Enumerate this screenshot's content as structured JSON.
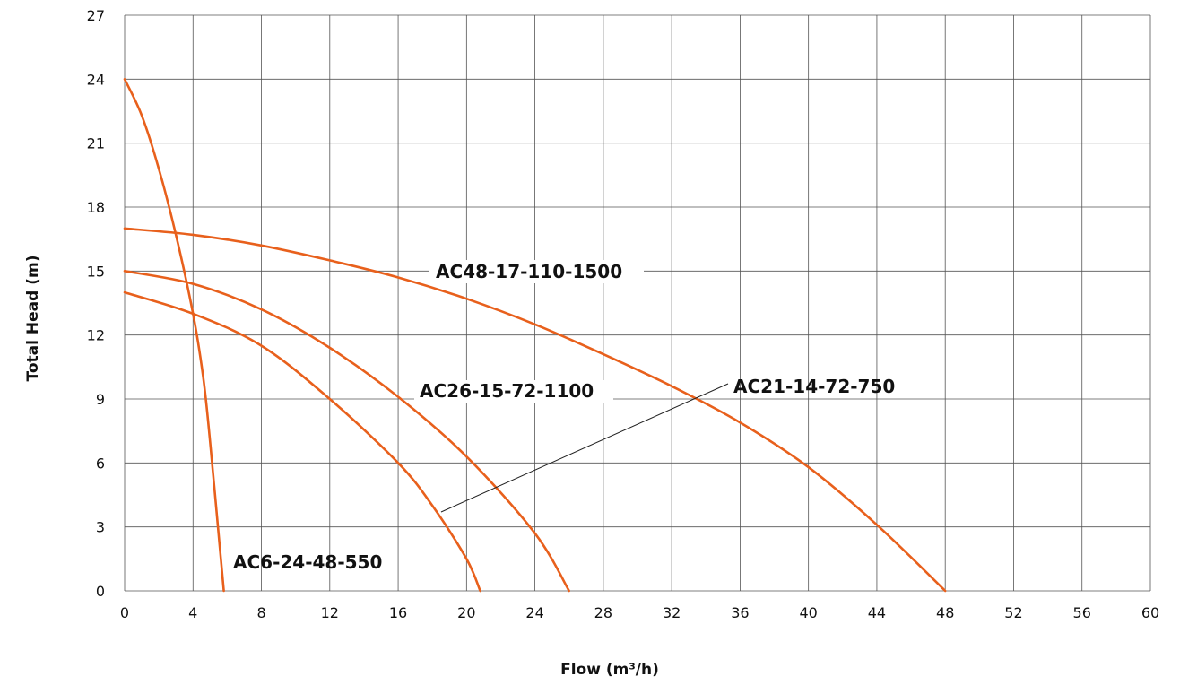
{
  "chart_data": {
    "type": "line",
    "title": "",
    "xlabel": "Flow (m³/h)",
    "ylabel": "Total Head (m)",
    "xlim": [
      0,
      60
    ],
    "ylim": [
      0,
      27
    ],
    "xticks": [
      0,
      4,
      8,
      12,
      16,
      20,
      24,
      28,
      32,
      36,
      40,
      44,
      48,
      52,
      56,
      60
    ],
    "yticks": [
      0,
      3,
      6,
      9,
      12,
      15,
      18,
      21,
      24,
      27
    ],
    "grid": true,
    "line_color": "#e8601c",
    "series": [
      {
        "name": "AC6-24-48-550",
        "x": [
          0,
          1,
          2,
          3,
          4,
          4.6,
          5.0,
          5.4,
          5.8
        ],
        "y": [
          24,
          22.3,
          19.8,
          16.7,
          13.0,
          10.0,
          7.0,
          3.5,
          0
        ]
      },
      {
        "name": "AC21-14-72-750",
        "x": [
          0,
          4,
          8,
          12,
          16,
          18,
          20,
          20.8
        ],
        "y": [
          14,
          13.0,
          11.5,
          9.0,
          6.0,
          4.0,
          1.5,
          0
        ]
      },
      {
        "name": "AC26-15-72-1100",
        "x": [
          0,
          4,
          8,
          12,
          16,
          20,
          24,
          26
        ],
        "y": [
          15,
          14.4,
          13.2,
          11.4,
          9.1,
          6.3,
          2.7,
          0
        ]
      },
      {
        "name": "AC48-17-110-1500",
        "x": [
          0,
          4,
          8,
          12,
          16,
          20,
          24,
          28,
          32,
          36,
          40,
          44,
          48
        ],
        "y": [
          17,
          16.7,
          16.2,
          15.5,
          14.7,
          13.7,
          12.5,
          11.1,
          9.6,
          7.9,
          5.8,
          3.1,
          0
        ]
      }
    ]
  }
}
